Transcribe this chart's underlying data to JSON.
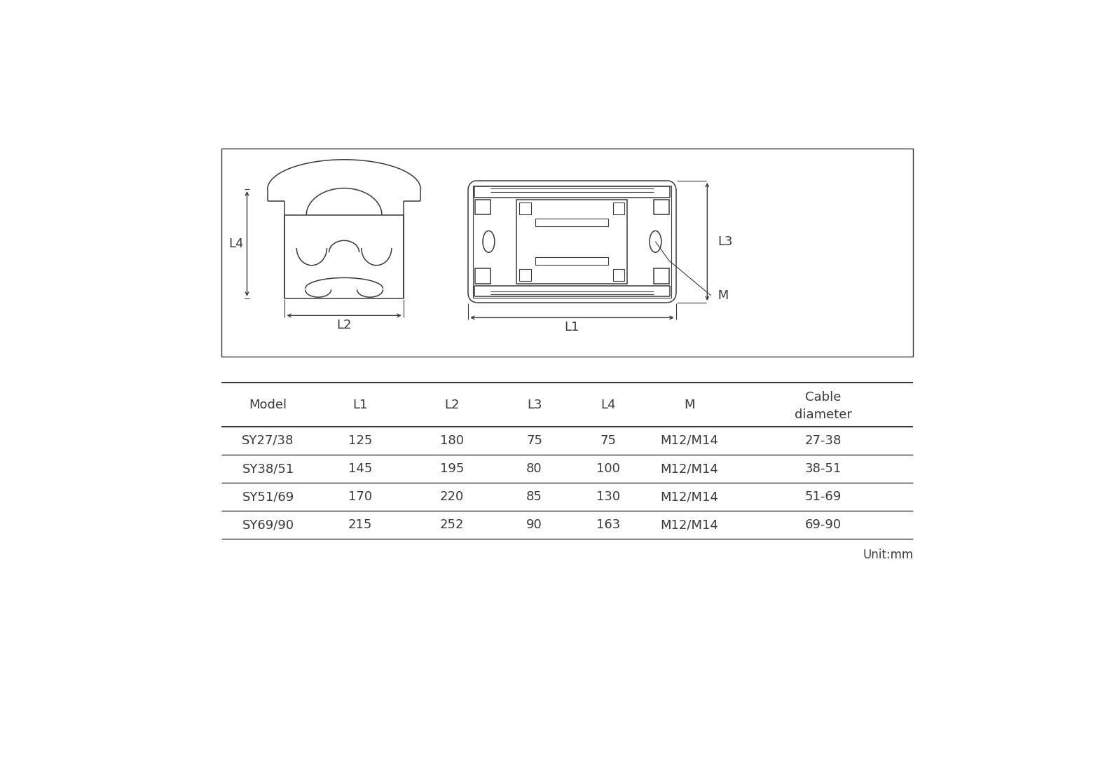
{
  "bg_color": "#ffffff",
  "line_color": "#3a3a3a",
  "table_headers": [
    "Model",
    "L1",
    "L2",
    "L3",
    "L4",
    "M",
    "Cable\ndiameter"
  ],
  "table_rows": [
    [
      "SY27/38",
      "125",
      "180",
      "75",
      "75",
      "M12/M14",
      "27-38"
    ],
    [
      "SY38/51",
      "145",
      "195",
      "80",
      "100",
      "M12/M14",
      "38-51"
    ],
    [
      "SY51/69",
      "170",
      "220",
      "85",
      "130",
      "M12/M14",
      "51-69"
    ],
    [
      "SY69/90",
      "215",
      "252",
      "90",
      "163",
      "M12/M14",
      "69-90"
    ]
  ],
  "unit_text": "Unit:mm",
  "lw": 1.1,
  "lw_thick": 1.5,
  "lw_thin": 0.8
}
